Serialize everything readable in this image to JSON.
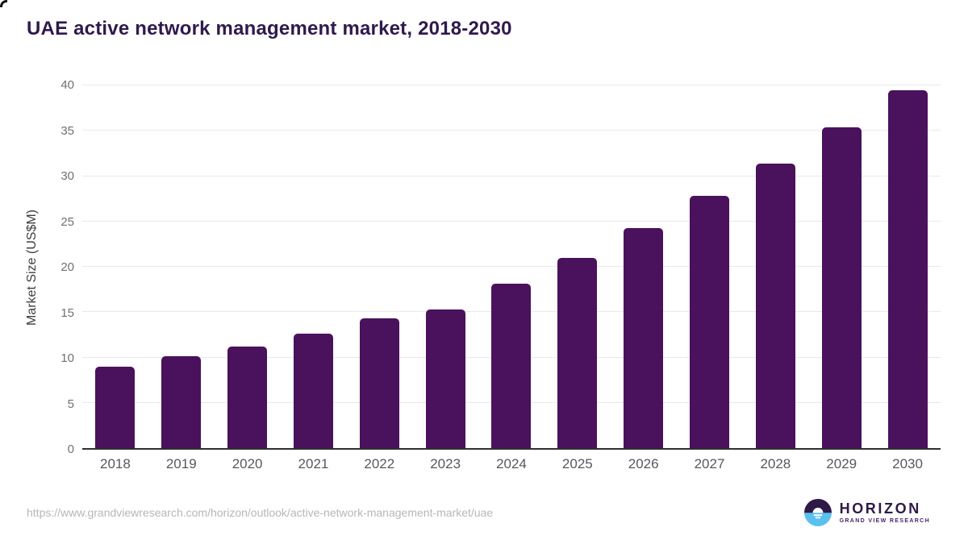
{
  "page": {
    "title": "UAE active network management market, 2018-2030"
  },
  "chart_data": {
    "type": "bar",
    "title": "UAE active network management market, 2018-2030",
    "categories": [
      "2018",
      "2019",
      "2020",
      "2021",
      "2022",
      "2023",
      "2024",
      "2025",
      "2026",
      "2027",
      "2028",
      "2029",
      "2030"
    ],
    "values": [
      9.0,
      10.1,
      11.2,
      12.6,
      14.3,
      15.3,
      18.1,
      21.0,
      24.3,
      27.8,
      31.4,
      35.4,
      39.5
    ],
    "xlabel": "",
    "ylabel": "Market Size (US$M)",
    "ylim": [
      0,
      40
    ],
    "yticks": [
      0,
      5,
      10,
      15,
      20,
      25,
      30,
      35,
      40
    ],
    "grid": true,
    "legend_position": "none",
    "bar_color": "#4a115c"
  },
  "footer": {
    "source_url": "https://www.grandviewresearch.com/horizon/outlook/active-network-management-market/uae",
    "logo_text": "HORIZON",
    "logo_subtext": "GRAND VIEW RESEARCH"
  },
  "colors": {
    "title_text": "#2f1a4c",
    "bar": "#4a115c",
    "grid_line": "#e9e9ec",
    "axis_line": "#2f2f33",
    "x_tick_text": "#56585f",
    "y_tick_text": "#6e7075",
    "y_axis_title_text": "#3b3d42",
    "url_text": "#b4b7ba",
    "logo_purple": "#2e1a47",
    "logo_blue": "#5ac1ef"
  }
}
